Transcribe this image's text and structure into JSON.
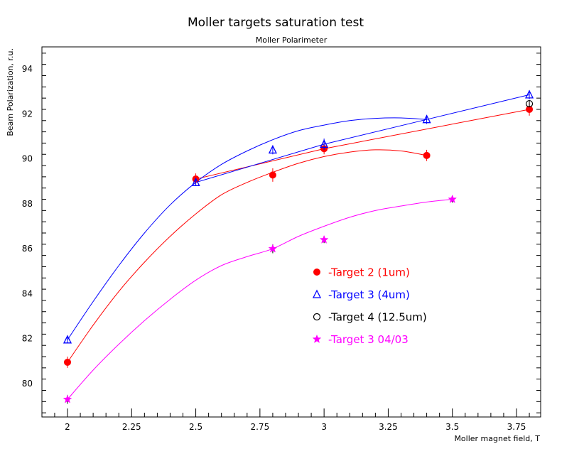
{
  "chart_data": {
    "type": "scatter",
    "title": "Moller targets saturation test",
    "subtitle": "Moller Polarimeter",
    "xlabel": "Moller magnet field, T",
    "ylabel": "Beam Polarization, r.u.",
    "xlim": [
      1.9,
      3.9
    ],
    "ylim": [
      78.7,
      95
    ],
    "x_ticks": [
      2,
      2.25,
      2.5,
      2.75,
      3,
      3.25,
      3.5,
      3.75
    ],
    "x_tick_labels": [
      "2",
      "2.25",
      "2.5",
      "2.75",
      "3",
      "3.25",
      "3.5",
      "3.75"
    ],
    "y_ticks": [
      80,
      82,
      84,
      86,
      88,
      90,
      92,
      94
    ],
    "y_tick_labels": [
      "80",
      "82",
      "84",
      "86",
      "88",
      "90",
      "92",
      "94"
    ],
    "grid": false,
    "legend_position": "center-right",
    "series": [
      {
        "name": "-Target 2 (1um)",
        "color": "#ff0000",
        "marker": "filled-circle",
        "x": [
          2.0,
          2.5,
          2.8,
          3.0,
          3.4,
          3.8
        ],
        "y": [
          80.95,
          89.1,
          89.28,
          90.45,
          90.15,
          92.2
        ],
        "err": [
          0.25,
          0.25,
          0.3,
          0.25,
          0.25,
          0.28
        ],
        "curve": {
          "x": [
            2.0,
            2.1,
            2.2,
            2.3,
            2.4,
            2.5,
            2.6,
            2.7,
            2.8,
            2.9,
            3.0,
            3.1,
            3.2,
            3.3,
            3.4
          ],
          "y": [
            80.95,
            82.6,
            84.1,
            85.4,
            86.55,
            87.55,
            88.4,
            88.95,
            89.4,
            89.8,
            90.1,
            90.3,
            90.4,
            90.35,
            90.15
          ]
        },
        "segments": [
          [
            2.5,
            89.1
          ],
          [
            3.0,
            90.45
          ],
          [
            3.8,
            92.2
          ]
        ]
      },
      {
        "name": "-Target 3 (4um)",
        "color": "#0000ff",
        "marker": "triangle",
        "x": [
          2.0,
          2.5,
          2.8,
          3.0,
          3.4,
          3.8
        ],
        "y": [
          81.95,
          88.95,
          90.4,
          90.65,
          91.75,
          92.85
        ],
        "err": [
          0.15,
          0.15,
          0.2,
          0.25,
          0.2,
          0.2
        ],
        "curve": {
          "x": [
            2.0,
            2.1,
            2.2,
            2.3,
            2.4,
            2.5,
            2.6,
            2.7,
            2.8,
            2.9,
            3.0,
            3.1,
            3.2,
            3.3,
            3.4
          ],
          "y": [
            81.95,
            83.65,
            85.25,
            86.7,
            87.95,
            88.95,
            89.75,
            90.35,
            90.85,
            91.25,
            91.5,
            91.7,
            91.8,
            91.82,
            91.75
          ]
        },
        "segments": [
          [
            2.5,
            88.95
          ],
          [
            3.0,
            90.65
          ],
          [
            3.4,
            91.75
          ],
          [
            3.8,
            92.85
          ]
        ]
      },
      {
        "name": "-Target 4 (12.5um)",
        "color": "#000000",
        "marker": "open-circle",
        "x": [
          3.8
        ],
        "y": [
          92.45
        ],
        "err": [
          0.15
        ]
      },
      {
        "name": "-Target 3 04/03",
        "color": "#ff00ff",
        "marker": "star",
        "x": [
          2.0,
          2.8,
          3.0,
          3.5
        ],
        "y": [
          79.3,
          86.0,
          86.4,
          88.2
        ],
        "err": [
          0.2,
          0.2,
          0.15,
          0.15
        ],
        "curve": {
          "x": [
            2.0,
            2.1,
            2.2,
            2.3,
            2.4,
            2.5,
            2.6,
            2.7,
            2.8,
            2.9,
            3.0,
            3.1,
            3.2,
            3.3,
            3.4,
            3.5
          ],
          "y": [
            79.3,
            80.6,
            81.75,
            82.8,
            83.75,
            84.6,
            85.25,
            85.65,
            86.0,
            86.55,
            87.0,
            87.4,
            87.7,
            87.9,
            88.08,
            88.2
          ]
        }
      }
    ]
  }
}
